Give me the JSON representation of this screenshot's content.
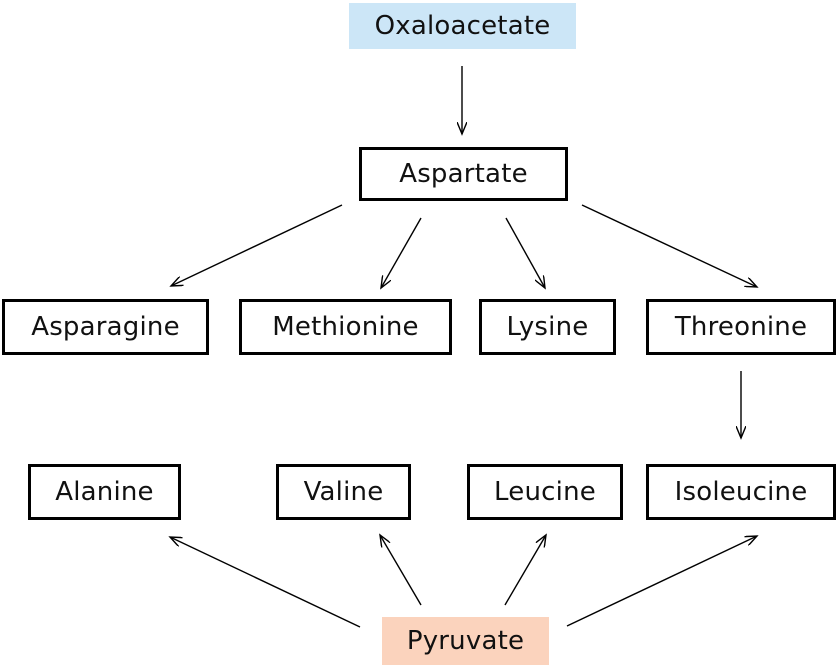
{
  "nodes": {
    "oxaloacetate": {
      "label": "Oxaloacetate",
      "fill": "#cce6f7"
    },
    "aspartate": {
      "label": "Aspartate"
    },
    "asparagine": {
      "label": "Asparagine"
    },
    "methionine": {
      "label": "Methionine"
    },
    "lysine": {
      "label": "Lysine"
    },
    "threonine": {
      "label": "Threonine"
    },
    "alanine": {
      "label": "Alanine"
    },
    "valine": {
      "label": "Valine"
    },
    "leucine": {
      "label": "Leucine"
    },
    "isoleucine": {
      "label": "Isoleucine"
    },
    "pyruvate": {
      "label": "Pyruvate",
      "fill": "#fbd3bd"
    }
  },
  "edges": [
    {
      "from": "oxaloacetate",
      "to": "aspartate"
    },
    {
      "from": "aspartate",
      "to": "asparagine"
    },
    {
      "from": "aspartate",
      "to": "methionine"
    },
    {
      "from": "aspartate",
      "to": "lysine"
    },
    {
      "from": "aspartate",
      "to": "threonine"
    },
    {
      "from": "threonine",
      "to": "isoleucine"
    },
    {
      "from": "pyruvate",
      "to": "alanine"
    },
    {
      "from": "pyruvate",
      "to": "valine"
    },
    {
      "from": "pyruvate",
      "to": "leucine"
    },
    {
      "from": "pyruvate",
      "to": "isoleucine"
    }
  ],
  "colors": {
    "line": "#000000",
    "text": "#111111"
  }
}
